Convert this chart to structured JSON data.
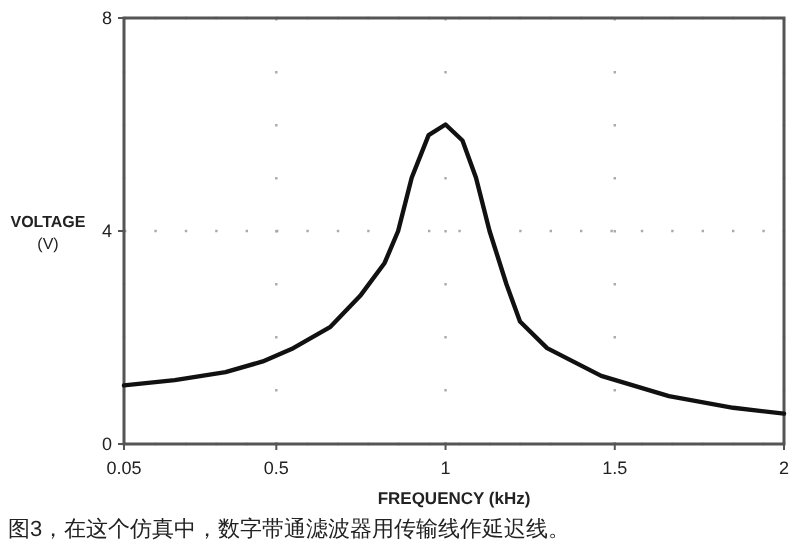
{
  "chart_data": {
    "type": "line",
    "xlabel": "FREQUENCY (kHz)",
    "ylabel": "VOLTAGE (V)",
    "annotations": [
      "图3，在这个仿真中，数字带通滤波器用传输线作延迟线。"
    ],
    "x": [
      0.05,
      0.2,
      0.35,
      0.46,
      0.55,
      0.66,
      0.75,
      0.82,
      0.86,
      0.9,
      0.95,
      1.0,
      1.05,
      1.09,
      1.13,
      1.18,
      1.22,
      1.3,
      1.46,
      1.66,
      1.85,
      2.0
    ],
    "series": [
      {
        "color": "#111111",
        "values": [
          1.1,
          1.2,
          1.35,
          1.55,
          1.8,
          2.2,
          2.8,
          3.4,
          4.0,
          5.0,
          5.8,
          6.0,
          5.7,
          5.0,
          4.0,
          3.0,
          2.3,
          1.8,
          1.28,
          0.9,
          0.68,
          0.57
        ]
      }
    ],
    "xlim": [
      0.05,
      2
    ],
    "xticks": [
      0.05,
      0.5,
      1,
      1.5,
      2
    ],
    "ylim": [
      0,
      8
    ],
    "yticks": [
      0,
      4,
      8
    ],
    "grid": true,
    "marker": "none",
    "line_style": "solid"
  }
}
